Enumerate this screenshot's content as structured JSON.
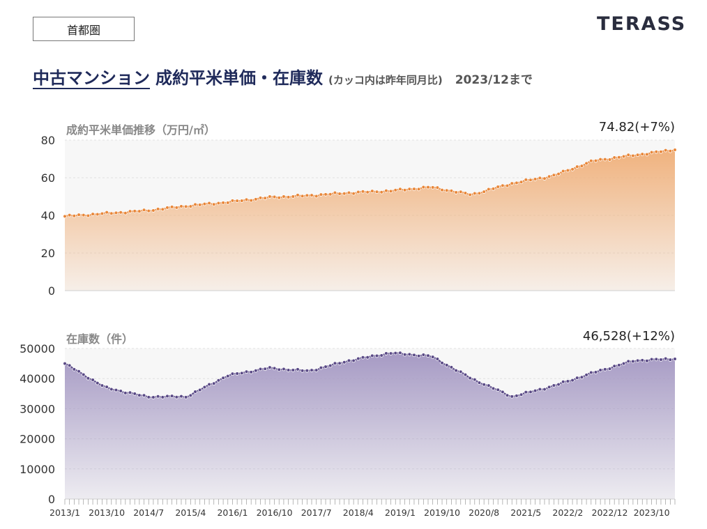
{
  "region_tag": "首都圏",
  "logo": "TERASS",
  "headline": {
    "main": "中古マンション",
    "rest": "成約平米単価・在庫数",
    "note": "(カッコ内は昨年同月比)",
    "date": "2023/12まで"
  },
  "price_panel": {
    "title": "成約平米単価推移（万円/㎡）",
    "current": "74.82(+7%)"
  },
  "stock_panel": {
    "title": "在庫数（件）",
    "current": "46,528(+12%)"
  },
  "colors": {
    "price_line": "#e8873a",
    "price_fill": "#f0b27e",
    "stock_line": "#5a4a86",
    "stock_fill": "#a69ac4",
    "plot_bg": "#f7f7f7"
  },
  "chart_data": [
    {
      "type": "area",
      "ylim": [
        0,
        80
      ],
      "yticks": [
        "0",
        "20",
        "40",
        "60",
        "80"
      ],
      "x": [
        "2013/1",
        "2013/10",
        "2014/7",
        "2015/4",
        "2016/1",
        "2016/10",
        "2017/7",
        "2018/4",
        "2019/1",
        "2019/10",
        "2020/8",
        "2021/5",
        "2022/2",
        "2022/12",
        "2023/10",
        "2023/12"
      ],
      "values": [
        39.5,
        41,
        42.5,
        45,
        47,
        49.5,
        50.5,
        52,
        53,
        55,
        51,
        57,
        61,
        69,
        72,
        74.82
      ]
    },
    {
      "type": "area",
      "ylim": [
        0,
        50000
      ],
      "yticks": [
        "0",
        "10000",
        "20000",
        "30000",
        "40000",
        "50000"
      ],
      "x": [
        "2013/1",
        "2013/10",
        "2014/7",
        "2015/4",
        "2016/1",
        "2016/10",
        "2017/7",
        "2018/4",
        "2019/1",
        "2019/10",
        "2020/8",
        "2021/5",
        "2022/2",
        "2022/12",
        "2023/10",
        "2023/12"
      ],
      "xticks": [
        "2013/1",
        "2013/10",
        "2014/7",
        "2015/4",
        "2016/1",
        "2016/10",
        "2017/7",
        "2018/4",
        "2019/1",
        "2019/10",
        "2020/8",
        "2021/5",
        "2022/2",
        "2022/12",
        "2023/10"
      ],
      "values": [
        45000,
        37000,
        34000,
        34000,
        41000,
        43500,
        42500,
        46000,
        48500,
        47500,
        40000,
        34000,
        37500,
        42000,
        46000,
        46528
      ]
    }
  ]
}
